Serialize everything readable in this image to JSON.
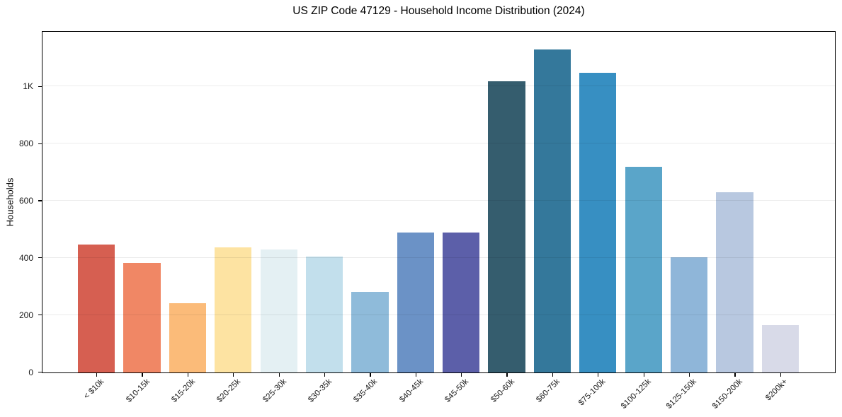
{
  "title": "US ZIP Code 47129 - Household Income Distribution (2024)",
  "chart_data": {
    "type": "bar",
    "title": "US ZIP Code 47129 - Household Income Distribution (2024)",
    "xlabel": "",
    "ylabel": "Households",
    "categories": [
      "< $10k",
      "$10-15k",
      "$15-20k",
      "$20-25k",
      "$25-30k",
      "$30-35k",
      "$35-40k",
      "$40-45k",
      "$45-50k",
      "$50-60k",
      "$60-75k",
      "$75-100k",
      "$100-125k",
      "$125-150k",
      "$150-200k",
      "$200k+"
    ],
    "values": [
      448,
      384,
      242,
      438,
      430,
      407,
      281,
      490,
      490,
      1020,
      1130,
      1050,
      720,
      404,
      630,
      167
    ],
    "bar_colors": [
      "#d65f51",
      "#f08765",
      "#fbbb79",
      "#fde3a2",
      "#e4f0f3",
      "#c2dfec",
      "#8fbbda",
      "#6b92c6",
      "#5c5fa9",
      "#355d6e",
      "#34789b",
      "#378fc2",
      "#5aa5c9",
      "#8fb6d9",
      "#b8c8e0",
      "#d8dae8"
    ],
    "ylim": [
      0,
      1190
    ],
    "ytick_values": [
      0,
      200,
      400,
      600,
      800,
      1000
    ],
    "ytick_labels": [
      "0",
      "200",
      "400",
      "600",
      "800",
      "1K"
    ],
    "grid": "horizontal",
    "legend": "none",
    "background_color": "#ffffff",
    "spine_color": "#000000",
    "gridline_color": "#e9e9e9",
    "text_color": "#1a1a1a"
  }
}
